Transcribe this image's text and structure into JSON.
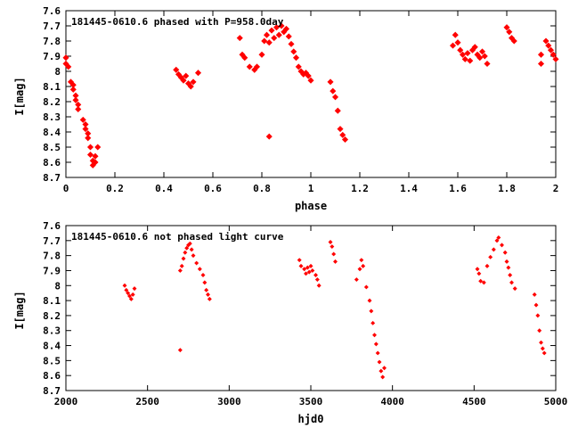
{
  "chart_data": [
    {
      "type": "scatter",
      "title": "181445-0610.6 phased with P=958.0day",
      "xlabel": "phase",
      "ylabel": "I[mag]",
      "xlim": [
        0,
        2
      ],
      "ylim": [
        8.7,
        7.6
      ],
      "y_inverted": true,
      "grid": false,
      "marker_color": "#ff0000",
      "xticks": [
        "0",
        "0.2",
        "0.4",
        "0.6",
        "0.8",
        "1",
        "1.2",
        "1.4",
        "1.6",
        "1.8",
        "2"
      ],
      "yticks": [
        "7.6",
        "7.7",
        "7.8",
        "7.9",
        "8",
        "8.1",
        "8.2",
        "8.3",
        "8.4",
        "8.5",
        "8.6",
        "8.7"
      ],
      "points": [
        [
          0.0,
          7.91
        ],
        [
          0.0,
          7.95
        ],
        [
          0.01,
          7.97
        ],
        [
          0.02,
          8.07
        ],
        [
          0.03,
          8.09
        ],
        [
          0.03,
          8.12
        ],
        [
          0.04,
          8.16
        ],
        [
          0.04,
          8.19
        ],
        [
          0.05,
          8.22
        ],
        [
          0.05,
          8.25
        ],
        [
          0.07,
          8.32
        ],
        [
          0.08,
          8.35
        ],
        [
          0.08,
          8.38
        ],
        [
          0.09,
          8.41
        ],
        [
          0.09,
          8.44
        ],
        [
          0.1,
          8.5
        ],
        [
          0.1,
          8.55
        ],
        [
          0.11,
          8.59
        ],
        [
          0.11,
          8.62
        ],
        [
          0.12,
          8.6
        ],
        [
          0.12,
          8.56
        ],
        [
          0.13,
          8.5
        ],
        [
          0.45,
          7.99
        ],
        [
          0.46,
          8.02
        ],
        [
          0.47,
          8.04
        ],
        [
          0.48,
          8.06
        ],
        [
          0.49,
          8.03
        ],
        [
          0.5,
          8.08
        ],
        [
          0.51,
          8.1
        ],
        [
          0.52,
          8.07
        ],
        [
          0.54,
          8.01
        ],
        [
          0.71,
          7.78
        ],
        [
          0.72,
          7.89
        ],
        [
          0.73,
          7.91
        ],
        [
          0.75,
          7.97
        ],
        [
          0.77,
          7.99
        ],
        [
          0.78,
          7.97
        ],
        [
          0.8,
          7.89
        ],
        [
          0.81,
          7.8
        ],
        [
          0.82,
          7.76
        ],
        [
          0.83,
          7.81
        ],
        [
          0.84,
          7.73
        ],
        [
          0.85,
          7.78
        ],
        [
          0.86,
          7.71
        ],
        [
          0.87,
          7.76
        ],
        [
          0.88,
          7.7
        ],
        [
          0.89,
          7.74
        ],
        [
          0.9,
          7.72
        ],
        [
          0.91,
          7.77
        ],
        [
          0.92,
          7.82
        ],
        [
          0.93,
          7.87
        ],
        [
          0.94,
          7.91
        ],
        [
          0.95,
          7.97
        ],
        [
          0.96,
          8.0
        ],
        [
          0.97,
          8.02
        ],
        [
          0.98,
          8.01
        ],
        [
          0.99,
          8.03
        ],
        [
          1.0,
          8.06
        ],
        [
          0.83,
          8.43
        ],
        [
          1.08,
          8.07
        ],
        [
          1.09,
          8.13
        ],
        [
          1.1,
          8.17
        ],
        [
          1.11,
          8.26
        ],
        [
          1.12,
          8.38
        ],
        [
          1.13,
          8.42
        ],
        [
          1.14,
          8.45
        ],
        [
          1.58,
          7.83
        ],
        [
          1.59,
          7.76
        ],
        [
          1.6,
          7.81
        ],
        [
          1.61,
          7.86
        ],
        [
          1.62,
          7.89
        ],
        [
          1.63,
          7.92
        ],
        [
          1.64,
          7.88
        ],
        [
          1.65,
          7.93
        ],
        [
          1.66,
          7.86
        ],
        [
          1.67,
          7.84
        ],
        [
          1.68,
          7.89
        ],
        [
          1.69,
          7.91
        ],
        [
          1.7,
          7.87
        ],
        [
          1.71,
          7.9
        ],
        [
          1.72,
          7.95
        ],
        [
          1.8,
          7.71
        ],
        [
          1.81,
          7.74
        ],
        [
          1.82,
          7.78
        ],
        [
          1.83,
          7.8
        ],
        [
          1.94,
          7.89
        ],
        [
          1.94,
          7.95
        ],
        [
          1.96,
          7.8
        ],
        [
          1.97,
          7.83
        ],
        [
          1.98,
          7.86
        ],
        [
          1.99,
          7.89
        ],
        [
          2.0,
          7.92
        ]
      ]
    },
    {
      "type": "scatter",
      "title": "181445-0610.6 not phased light curve",
      "xlabel": "hjd0",
      "ylabel": "I[mag]",
      "xlim": [
        2000,
        5000
      ],
      "ylim": [
        8.7,
        7.6
      ],
      "y_inverted": true,
      "grid": false,
      "marker_color": "#ff0000",
      "xticks": [
        "2000",
        "2500",
        "3000",
        "3500",
        "4000",
        "4500",
        "5000"
      ],
      "yticks": [
        "7.6",
        "7.7",
        "7.8",
        "7.9",
        "8",
        "8.1",
        "8.2",
        "8.3",
        "8.4",
        "8.5",
        "8.6",
        "8.7"
      ],
      "points": [
        [
          2360,
          8.0
        ],
        [
          2370,
          8.03
        ],
        [
          2380,
          8.05
        ],
        [
          2390,
          8.07
        ],
        [
          2400,
          8.09
        ],
        [
          2410,
          8.06
        ],
        [
          2420,
          8.02
        ],
        [
          2700,
          7.9
        ],
        [
          2710,
          7.87
        ],
        [
          2720,
          7.82
        ],
        [
          2730,
          7.78
        ],
        [
          2740,
          7.75
        ],
        [
          2750,
          7.73
        ],
        [
          2760,
          7.72
        ],
        [
          2770,
          7.76
        ],
        [
          2780,
          7.8
        ],
        [
          2800,
          7.85
        ],
        [
          2820,
          7.89
        ],
        [
          2840,
          7.93
        ],
        [
          2850,
          7.98
        ],
        [
          2860,
          8.03
        ],
        [
          2870,
          8.06
        ],
        [
          2880,
          8.09
        ],
        [
          2700,
          8.43
        ],
        [
          3430,
          7.83
        ],
        [
          3440,
          7.87
        ],
        [
          3460,
          7.89
        ],
        [
          3470,
          7.92
        ],
        [
          3480,
          7.88
        ],
        [
          3490,
          7.91
        ],
        [
          3500,
          7.87
        ],
        [
          3510,
          7.9
        ],
        [
          3530,
          7.93
        ],
        [
          3540,
          7.96
        ],
        [
          3550,
          8.0
        ],
        [
          3620,
          7.71
        ],
        [
          3630,
          7.74
        ],
        [
          3640,
          7.79
        ],
        [
          3650,
          7.84
        ],
        [
          3780,
          7.96
        ],
        [
          3800,
          7.89
        ],
        [
          3810,
          7.83
        ],
        [
          3820,
          7.87
        ],
        [
          3840,
          8.01
        ],
        [
          3860,
          8.1
        ],
        [
          3870,
          8.17
        ],
        [
          3880,
          8.25
        ],
        [
          3890,
          8.33
        ],
        [
          3900,
          8.39
        ],
        [
          3910,
          8.45
        ],
        [
          3920,
          8.51
        ],
        [
          3930,
          8.57
        ],
        [
          3940,
          8.61
        ],
        [
          3950,
          8.55
        ],
        [
          4520,
          7.89
        ],
        [
          4530,
          7.92
        ],
        [
          4540,
          7.97
        ],
        [
          4560,
          7.98
        ],
        [
          4580,
          7.87
        ],
        [
          4600,
          7.81
        ],
        [
          4620,
          7.76
        ],
        [
          4640,
          7.7
        ],
        [
          4650,
          7.68
        ],
        [
          4670,
          7.73
        ],
        [
          4690,
          7.78
        ],
        [
          4700,
          7.84
        ],
        [
          4710,
          7.88
        ],
        [
          4720,
          7.93
        ],
        [
          4730,
          7.98
        ],
        [
          4750,
          8.02
        ],
        [
          4870,
          8.06
        ],
        [
          4880,
          8.13
        ],
        [
          4890,
          8.2
        ],
        [
          4900,
          8.3
        ],
        [
          4910,
          8.38
        ],
        [
          4920,
          8.42
        ],
        [
          4930,
          8.45
        ]
      ]
    }
  ]
}
